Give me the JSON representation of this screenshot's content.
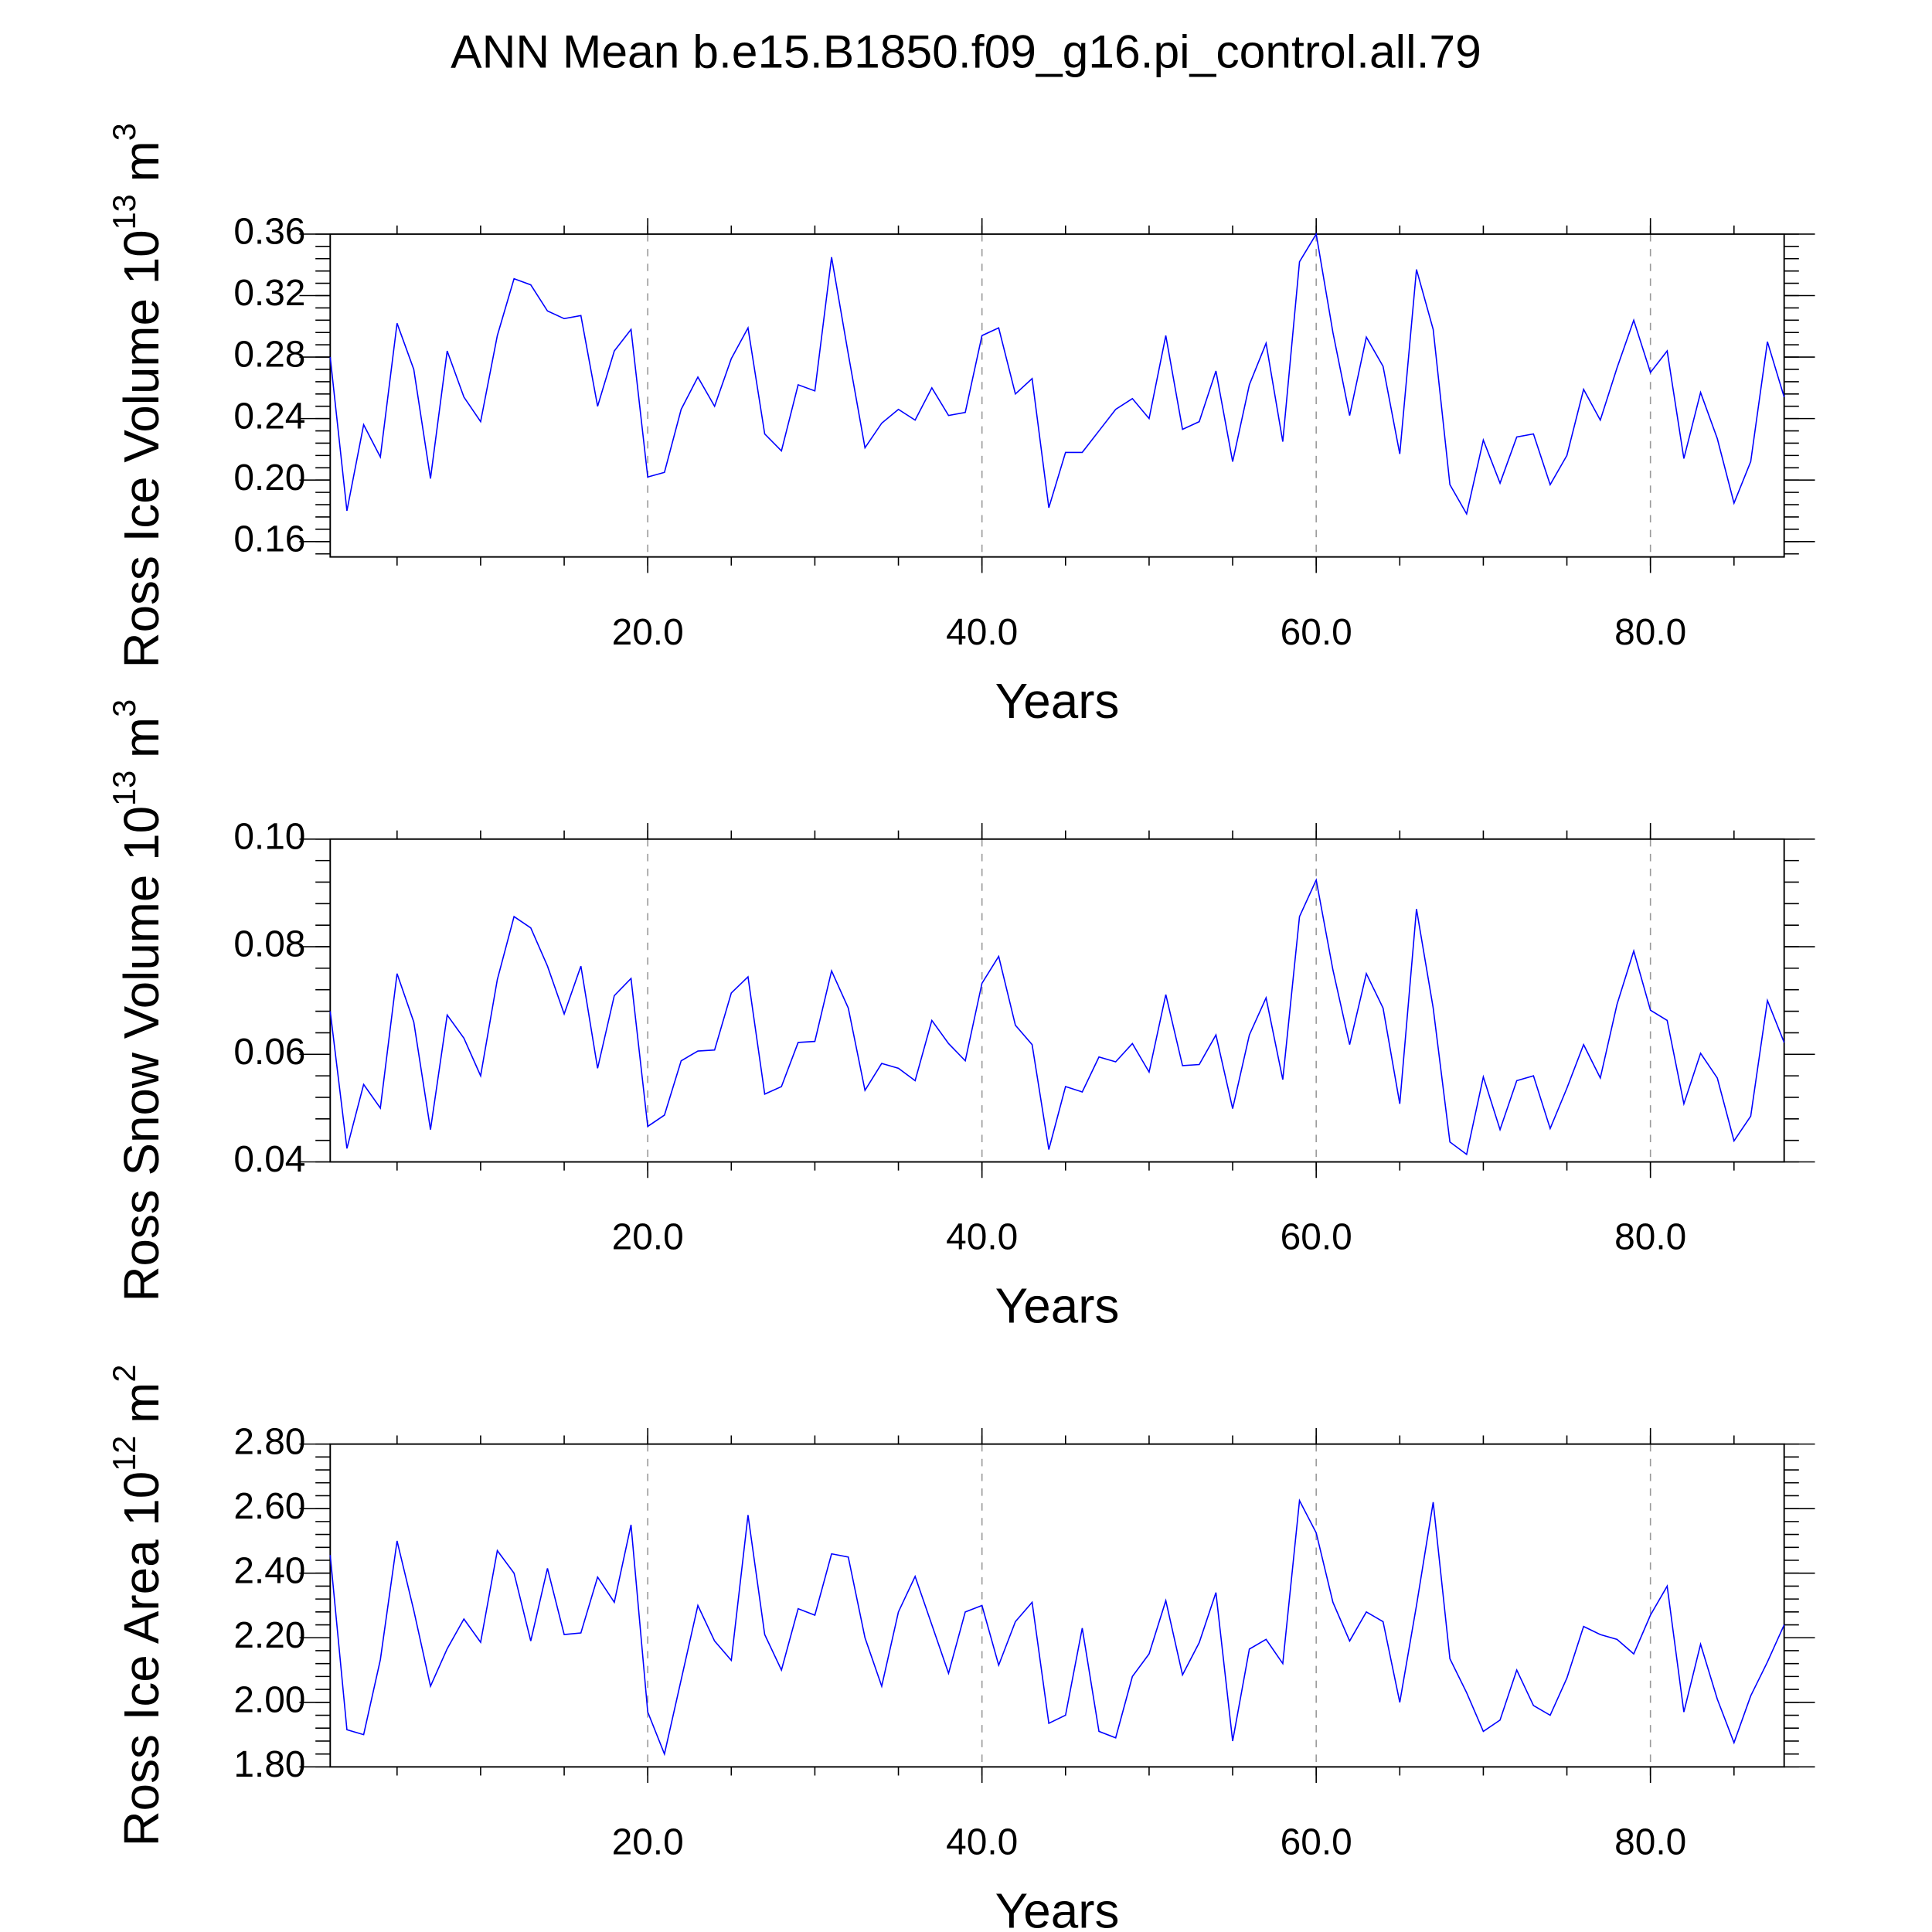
{
  "title": "ANN Mean b.e15.B1850.f09_g16.pi_control.all.79",
  "chart_data": [
    {
      "type": "line",
      "xlabel": "Years",
      "ylabel": [
        "Ross Ice Volume 10",
        "13",
        "m",
        "3"
      ],
      "x": [
        1,
        2,
        3,
        4,
        5,
        6,
        7,
        8,
        9,
        10,
        11,
        12,
        13,
        14,
        15,
        16,
        17,
        18,
        19,
        20,
        21,
        22,
        23,
        24,
        25,
        26,
        27,
        28,
        29,
        30,
        31,
        32,
        33,
        34,
        35,
        36,
        37,
        38,
        39,
        40,
        41,
        42,
        43,
        44,
        45,
        46,
        47,
        48,
        49,
        50,
        51,
        52,
        53,
        54,
        55,
        56,
        57,
        58,
        59,
        60,
        61,
        62,
        63,
        64,
        65,
        66,
        67,
        68,
        69,
        70,
        71,
        72,
        73,
        74,
        75,
        76,
        77,
        78,
        79,
        80,
        81,
        82,
        83,
        84,
        85,
        86,
        87,
        88
      ],
      "series": [
        {
          "color": "#0000ff",
          "values": [
            0.28,
            0.18,
            0.236,
            0.215,
            0.302,
            0.272,
            0.201,
            0.284,
            0.254,
            0.238,
            0.294,
            0.331,
            0.327,
            0.31,
            0.305,
            0.307,
            0.248,
            0.284,
            0.298,
            0.202,
            0.205,
            0.246,
            0.267,
            0.248,
            0.279,
            0.299,
            0.23,
            0.219,
            0.262,
            0.258,
            0.345,
            0.282,
            0.221,
            0.237,
            0.246,
            0.239,
            0.26,
            0.242,
            0.244,
            0.294,
            0.299,
            0.256,
            0.266,
            0.182,
            0.218,
            0.218,
            0.232,
            0.246,
            0.253,
            0.24,
            0.294,
            0.233,
            0.238,
            0.271,
            0.212,
            0.262,
            0.289,
            0.225,
            0.342,
            0.36,
            0.296,
            0.242,
            0.293,
            0.274,
            0.217,
            0.337,
            0.298,
            0.197,
            0.178,
            0.226,
            0.198,
            0.228,
            0.23,
            0.197,
            0.216,
            0.259,
            0.239,
            0.273,
            0.304,
            0.27,
            0.284,
            0.214,
            0.257,
            0.227,
            0.185,
            0.212,
            0.29,
            0.254
          ]
        }
      ],
      "xlim": [
        1,
        88
      ],
      "xticks": [
        {
          "value": 20,
          "label": "20.0"
        },
        {
          "value": 40,
          "label": "40.0"
        },
        {
          "value": 60,
          "label": "60.0"
        },
        {
          "value": 80,
          "label": "80.0"
        }
      ],
      "ylim": [
        0.15,
        0.36
      ],
      "yticks": [
        0.16,
        {
          "value": 0.2,
          "label": "0.20"
        },
        0.24,
        0.28,
        0.32,
        0.36
      ],
      "grid": true
    },
    {
      "type": "line",
      "xlabel": "Years",
      "ylabel": [
        "Ross Snow Volume 10",
        "13",
        "m",
        "3"
      ],
      "x": [
        1,
        2,
        3,
        4,
        5,
        6,
        7,
        8,
        9,
        10,
        11,
        12,
        13,
        14,
        15,
        16,
        17,
        18,
        19,
        20,
        21,
        22,
        23,
        24,
        25,
        26,
        27,
        28,
        29,
        30,
        31,
        32,
        33,
        34,
        35,
        36,
        37,
        38,
        39,
        40,
        41,
        42,
        43,
        44,
        45,
        46,
        47,
        48,
        49,
        50,
        51,
        52,
        53,
        54,
        55,
        56,
        57,
        58,
        59,
        60,
        61,
        62,
        63,
        64,
        65,
        66,
        67,
        68,
        69,
        70,
        71,
        72,
        73,
        74,
        75,
        76,
        77,
        78,
        79,
        80,
        81,
        82,
        83,
        84,
        85,
        86,
        87,
        88
      ],
      "series": [
        {
          "color": "#0000ff",
          "values": [
            0.068,
            0.0425,
            0.0544,
            0.05,
            0.075,
            0.066,
            0.046,
            0.0673,
            0.063,
            0.056,
            0.0739,
            0.0856,
            0.0835,
            0.0764,
            0.0675,
            0.0764,
            0.0574,
            0.0709,
            0.0741,
            0.0466,
            0.0487,
            0.0588,
            0.0606,
            0.0608,
            0.0714,
            0.0744,
            0.0526,
            0.054,
            0.0622,
            0.0624,
            0.0755,
            0.0686,
            0.0533,
            0.0583,
            0.0574,
            0.0551,
            0.0663,
            0.062,
            0.0588,
            0.0732,
            0.0782,
            0.0654,
            0.0618,
            0.0423,
            0.054,
            0.053,
            0.0595,
            0.0586,
            0.062,
            0.0567,
            0.0711,
            0.0579,
            0.0581,
            0.0636,
            0.0499,
            0.0636,
            0.0705,
            0.0553,
            0.0856,
            0.0924,
            0.0757,
            0.0618,
            0.075,
            0.0686,
            0.0508,
            0.087,
            0.0686,
            0.0437,
            0.0414,
            0.0558,
            0.046,
            0.0551,
            0.056,
            0.0462,
            0.0537,
            0.0618,
            0.0556,
            0.0693,
            0.0792,
            0.0682,
            0.0663,
            0.0508,
            0.0602,
            0.0556,
            0.0439,
            0.0485,
            0.07,
            0.0622
          ]
        }
      ],
      "xlim": [
        1,
        88
      ],
      "xticks": [
        {
          "value": 20,
          "label": "20.0"
        },
        {
          "value": 40,
          "label": "40.0"
        },
        {
          "value": 60,
          "label": "60.0"
        },
        {
          "value": 80,
          "label": "80.0"
        }
      ],
      "ylim": [
        0.04,
        0.1
      ],
      "yticks": [
        0.04,
        0.06,
        0.08,
        {
          "value": 0.1,
          "label": "0.10"
        }
      ],
      "grid": true
    },
    {
      "type": "line",
      "xlabel": "Years",
      "ylabel": [
        "Ross Ice Area 10",
        "12",
        "m",
        "2"
      ],
      "x": [
        1,
        2,
        3,
        4,
        5,
        6,
        7,
        8,
        9,
        10,
        11,
        12,
        13,
        14,
        15,
        16,
        17,
        18,
        19,
        20,
        21,
        22,
        23,
        24,
        25,
        26,
        27,
        28,
        29,
        30,
        31,
        32,
        33,
        34,
        35,
        36,
        37,
        38,
        39,
        40,
        41,
        42,
        43,
        44,
        45,
        46,
        47,
        48,
        49,
        50,
        51,
        52,
        53,
        54,
        55,
        56,
        57,
        58,
        59,
        60,
        61,
        62,
        63,
        64,
        65,
        66,
        67,
        68,
        69,
        70,
        71,
        72,
        73,
        74,
        75,
        76,
        77,
        78,
        79,
        80,
        81,
        82,
        83,
        84,
        85,
        86,
        87,
        88
      ],
      "series": [
        {
          "color": "#0000ff",
          "values": [
            2.456,
            1.915,
            1.9,
            2.132,
            2.5,
            2.285,
            2.05,
            2.166,
            2.258,
            2.186,
            2.47,
            2.4,
            2.19,
            2.415,
            2.21,
            2.215,
            2.388,
            2.31,
            2.55,
            1.97,
            1.84,
            2.07,
            2.3,
            2.19,
            2.13,
            2.58,
            2.21,
            2.1,
            2.29,
            2.27,
            2.46,
            2.45,
            2.2,
            2.05,
            2.28,
            2.39,
            2.24,
            2.09,
            2.28,
            2.3,
            2.115,
            2.25,
            2.31,
            1.935,
            1.96,
            2.23,
            1.91,
            1.89,
            2.08,
            2.15,
            2.315,
            2.085,
            2.185,
            2.34,
            1.88,
            2.165,
            2.195,
            2.12,
            2.625,
            2.525,
            2.31,
            2.19,
            2.28,
            2.25,
            2.0,
            2.3,
            2.62,
            2.135,
            2.03,
            1.91,
            1.945,
            2.1,
            1.99,
            1.96,
            2.075,
            2.235,
            2.21,
            2.195,
            2.15,
            2.27,
            2.36,
            1.97,
            2.18,
            2.01,
            1.875,
            2.02,
            2.125,
            2.24
          ]
        }
      ],
      "xlim": [
        1,
        88
      ],
      "xticks": [
        {
          "value": 20,
          "label": "20.0"
        },
        {
          "value": 40,
          "label": "40.0"
        },
        {
          "value": 60,
          "label": "60.0"
        },
        {
          "value": 80,
          "label": "80.0"
        }
      ],
      "ylim": [
        1.8,
        2.8
      ],
      "yticks": [
        {
          "value": 1.8,
          "label": "1.80"
        },
        {
          "value": 2,
          "label": "2.00"
        },
        {
          "value": 2.2,
          "label": "2.20"
        },
        {
          "value": 2.4,
          "label": "2.40"
        },
        {
          "value": 2.6,
          "label": "2.60"
        },
        {
          "value": 2.8,
          "label": "2.80"
        }
      ],
      "grid": true
    }
  ]
}
